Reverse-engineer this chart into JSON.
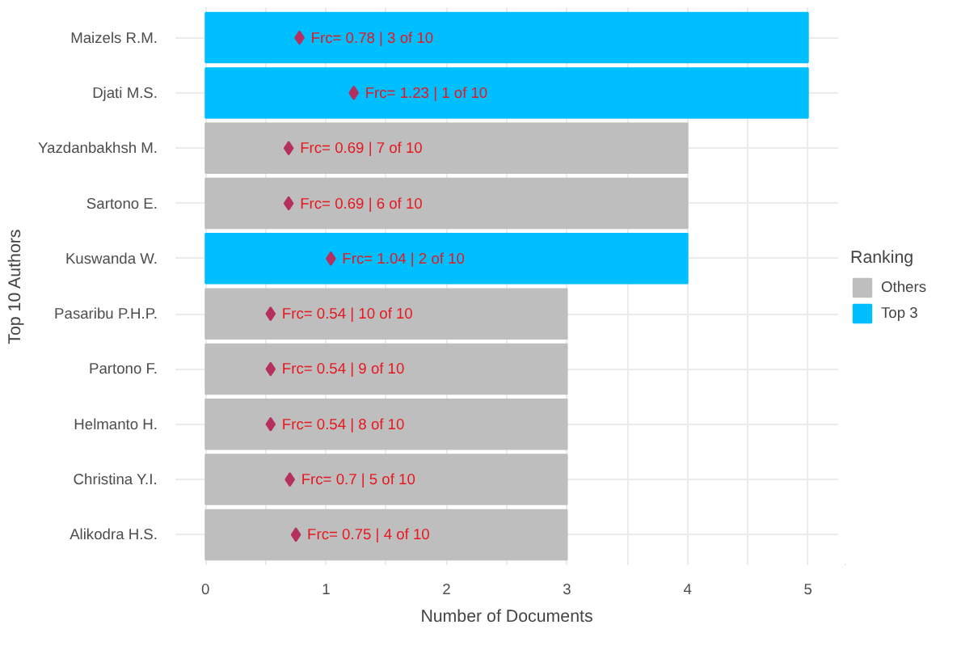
{
  "chart_data": {
    "type": "bar",
    "orientation": "horizontal",
    "xlabel": "Number of Documents",
    "ylabel": "Top 10 Authors",
    "categories": [
      "Maizels R.M.",
      "Djati M.S.",
      "Yazdanbakhsh M.",
      "Sartono E.",
      "Kuswanda W.",
      "Pasaribu P.H.P.",
      "Partono F.",
      "Helmanto H.",
      "Christina Y.I.",
      "Alikodra H.S."
    ],
    "series": [
      {
        "name": "Others",
        "color": "#bebebe",
        "values": [
          null,
          null,
          4,
          4,
          null,
          3,
          3,
          3,
          3,
          3
        ]
      },
      {
        "name": "Top 3",
        "color": "#00bfff",
        "values": [
          5,
          5,
          null,
          null,
          4,
          null,
          null,
          null,
          null,
          null
        ]
      },
      {
        "type": "scatter",
        "color": "#b5305f",
        "marker": "diamond",
        "values": [
          0.78,
          1.23,
          0.69,
          0.69,
          1.04,
          0.54,
          0.54,
          0.54,
          0.7,
          0.75
        ],
        "value_labels": [
          "Frc= 0.78 | 3 of 10",
          "Frc= 1.23 | 1 of 10",
          "Frc= 0.69 | 7 of 10",
          "Frc= 0.69 | 6 of 10",
          "Frc= 1.04 | 2 of 10",
          "Frc= 0.54 | 10 of 10",
          "Frc= 0.54 | 9 of 10",
          "Frc= 0.54 | 8 of 10",
          "Frc= 0.7 | 5 of 10",
          "Frc= 0.75 | 4 of 10"
        ]
      }
    ],
    "xlim": [
      -0.25,
      5.25
    ],
    "xticks": [
      0,
      {
        "value": 0.5,
        "label": null
      },
      1,
      {
        "value": 1.5,
        "label": null
      },
      2,
      {
        "value": 2.5,
        "label": null
      },
      3,
      {
        "value": 3.5,
        "label": null
      },
      4,
      {
        "value": 4.5,
        "label": null
      },
      5
    ],
    "grid": true,
    "legend": "right",
    "legend_title": "Ranking"
  }
}
